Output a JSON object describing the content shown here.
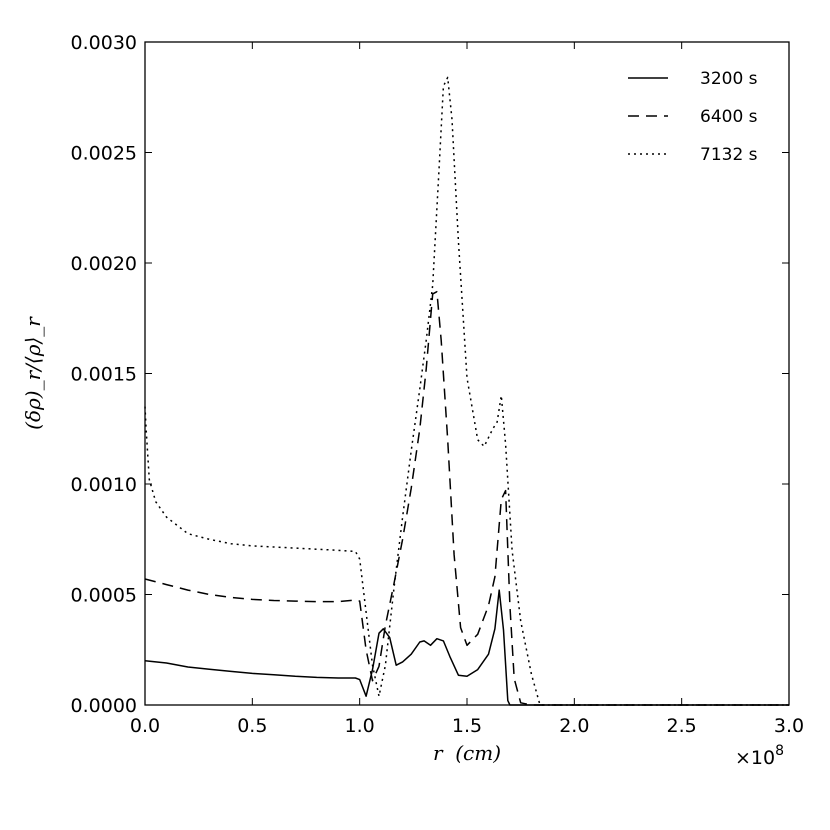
{
  "chart_data": {
    "type": "line",
    "xlabel": "r  (cm)",
    "ylabel": "(δρ)_r/⟨ρ⟩_r",
    "x_offset_label": "×10",
    "x_offset_exponent": "8",
    "xlim": [
      0,
      3.0
    ],
    "ylim": [
      0,
      0.003
    ],
    "x_ticks": [
      "0.0",
      "0.5",
      "1.0",
      "1.5",
      "2.0",
      "2.5",
      "3.0"
    ],
    "y_ticks": [
      "0.0000",
      "0.0005",
      "0.0010",
      "0.0015",
      "0.0020",
      "0.0025",
      "0.0030"
    ],
    "grid": false,
    "legend_position": "top-right",
    "series": [
      {
        "name": "3200 s",
        "style": "solid",
        "x": [
          0,
          0.1,
          0.2,
          0.3,
          0.4,
          0.5,
          0.6,
          0.7,
          0.8,
          0.9,
          0.98,
          1.0,
          1.03,
          1.06,
          1.09,
          1.11,
          1.14,
          1.17,
          1.2,
          1.24,
          1.28,
          1.3,
          1.33,
          1.36,
          1.39,
          1.42,
          1.46,
          1.5,
          1.55,
          1.6,
          1.63,
          1.65,
          1.67,
          1.69,
          1.7,
          1.75,
          1.8,
          2.0,
          3.0
        ],
        "y": [
          0.0002,
          0.00019,
          0.000172,
          0.000162,
          0.000152,
          0.000143,
          0.000137,
          0.00013,
          0.000125,
          0.000122,
          0.000122,
          0.000115,
          4e-05,
          0.00016,
          0.000325,
          0.000345,
          0.000305,
          0.00018,
          0.000195,
          0.00023,
          0.000285,
          0.00029,
          0.00027,
          0.0003,
          0.00029,
          0.00022,
          0.000135,
          0.00013,
          0.00016,
          0.00023,
          0.000345,
          0.00052,
          0.00034,
          2e-05,
          0,
          0,
          0,
          0,
          0
        ]
      },
      {
        "name": "6400 s",
        "style": "dashed",
        "x": [
          0,
          0.1,
          0.2,
          0.3,
          0.4,
          0.5,
          0.6,
          0.7,
          0.8,
          0.9,
          0.98,
          1.0,
          1.03,
          1.06,
          1.09,
          1.12,
          1.16,
          1.2,
          1.24,
          1.28,
          1.31,
          1.34,
          1.36,
          1.38,
          1.41,
          1.44,
          1.47,
          1.5,
          1.55,
          1.6,
          1.63,
          1.66,
          1.68,
          1.7,
          1.72,
          1.75,
          1.8,
          2.0,
          3.0
        ],
        "y": [
          0.00057,
          0.000545,
          0.00052,
          0.0005,
          0.000487,
          0.000478,
          0.000473,
          0.00047,
          0.000468,
          0.000468,
          0.000475,
          0.00047,
          0.00025,
          0.00011,
          0.000175,
          0.00036,
          0.00055,
          0.00075,
          0.00098,
          0.00125,
          0.00152,
          0.00186,
          0.00187,
          0.00165,
          0.0012,
          0.00068,
          0.00035,
          0.00027,
          0.00032,
          0.00045,
          0.00058,
          0.00093,
          0.00097,
          0.00045,
          0.00012,
          1e-05,
          0,
          0,
          0
        ]
      },
      {
        "name": "7132 s",
        "style": "dotted",
        "x": [
          0,
          0.005,
          0.02,
          0.05,
          0.1,
          0.2,
          0.3,
          0.4,
          0.5,
          0.6,
          0.7,
          0.8,
          0.9,
          0.98,
          1.0,
          1.03,
          1.06,
          1.09,
          1.12,
          1.16,
          1.2,
          1.24,
          1.28,
          1.31,
          1.34,
          1.37,
          1.39,
          1.41,
          1.43,
          1.46,
          1.5,
          1.55,
          1.58,
          1.62,
          1.64,
          1.66,
          1.68,
          1.71,
          1.75,
          1.8,
          1.84,
          1.9,
          2.0,
          3.0
        ],
        "y": [
          0.00135,
          0.00125,
          0.00102,
          0.00092,
          0.00085,
          0.000775,
          0.00075,
          0.00073,
          0.00072,
          0.000715,
          0.00071,
          0.000705,
          0.0007,
          0.000695,
          0.00066,
          0.00042,
          0.00018,
          4e-05,
          0.00018,
          0.00053,
          0.00085,
          0.00115,
          0.00143,
          0.00165,
          0.0019,
          0.00243,
          0.0028,
          0.00284,
          0.00265,
          0.0021,
          0.00148,
          0.0012,
          0.00117,
          0.00125,
          0.00128,
          0.0014,
          0.00118,
          0.0007,
          0.00038,
          0.00014,
          0,
          0,
          0,
          0
        ]
      }
    ]
  }
}
